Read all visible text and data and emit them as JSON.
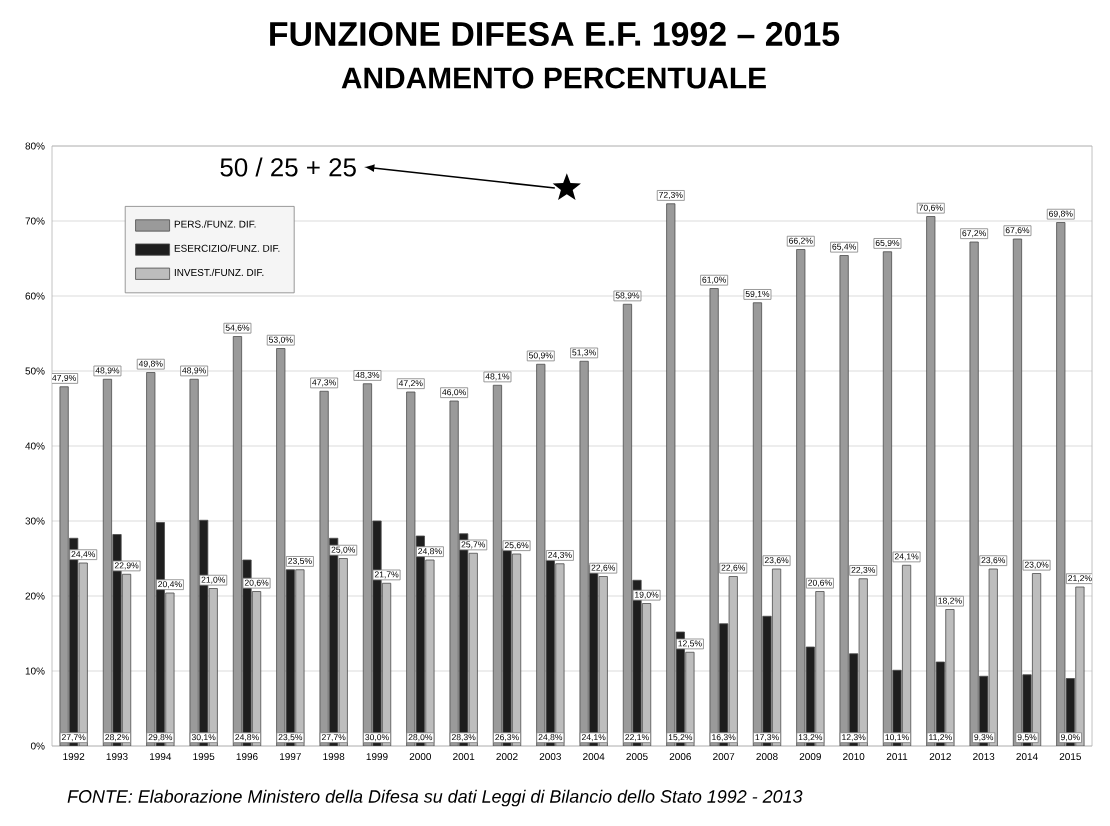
{
  "chart_data": {
    "type": "bar",
    "title": "FUNZIONE DIFESA E.F. 1992 – 2015",
    "subtitle": "ANDAMENTO PERCENTUALE",
    "categories": [
      "1992",
      "1993",
      "1994",
      "1995",
      "1996",
      "1997",
      "1998",
      "1999",
      "2000",
      "2001",
      "2002",
      "2003",
      "2004",
      "2005",
      "2006",
      "2007",
      "2008",
      "2009",
      "2010",
      "2011",
      "2012",
      "2013",
      "2014",
      "2015"
    ],
    "series": [
      {
        "name": "PERS./FUNZ. DIF.",
        "color": "#9a9a9a",
        "values": [
          47.9,
          48.9,
          49.8,
          48.9,
          54.6,
          53.0,
          47.3,
          48.3,
          47.2,
          46.0,
          48.1,
          50.9,
          51.3,
          58.9,
          72.3,
          61.0,
          59.1,
          66.2,
          65.4,
          65.9,
          70.6,
          67.2,
          67.6,
          69.8
        ],
        "value_labels": [
          "47,9%",
          "48,9%",
          "49,8%",
          "48,9%",
          "54,6%",
          "53,0%",
          "47,3%",
          "48,3%",
          "47,2%",
          "46,0%",
          "48,1%",
          "50,9%",
          "51,3%",
          "58,9%",
          "72,3%",
          "61,0%",
          "59,1%",
          "66,2%",
          "65,4%",
          "65,9%",
          "70,6%",
          "67,2%",
          "67,6%",
          "69,8%"
        ]
      },
      {
        "name": "ESERCIZIO/FUNZ. DIF.",
        "color": "#1e1e1e",
        "values": [
          27.7,
          28.2,
          29.8,
          30.1,
          24.8,
          23.5,
          27.7,
          30.0,
          28.0,
          28.3,
          26.3,
          24.8,
          24.1,
          22.1,
          15.2,
          16.3,
          17.3,
          13.2,
          12.3,
          10.1,
          11.2,
          9.3,
          9.5,
          9.0
        ],
        "value_labels": [
          "27,7%",
          "28,2%",
          "29,8%",
          "30,1%",
          "24,8%",
          "23,5%",
          "27,7%",
          "30,0%",
          "28,0%",
          "28,3%",
          "26,3%",
          "24,8%",
          "24,1%",
          "22,1%",
          "15,2%",
          "16,3%",
          "17,3%",
          "13,2%",
          "12,3%",
          "10,1%",
          "11,2%",
          "9,3%",
          "9,5%",
          "9,0%"
        ]
      },
      {
        "name": "INVEST./FUNZ. DIF.",
        "color": "#bdbdbd",
        "values": [
          24.4,
          22.9,
          20.4,
          21.0,
          20.6,
          23.5,
          25.0,
          21.7,
          24.8,
          25.7,
          25.6,
          24.3,
          22.6,
          19.0,
          12.5,
          22.6,
          23.6,
          20.6,
          22.3,
          24.1,
          18.2,
          23.6,
          23.0,
          21.2
        ],
        "value_labels": [
          "24,4%",
          "22,9%",
          "20,4%",
          "21,0%",
          "20,6%",
          "23,5%",
          "25,0%",
          "21,7%",
          "24,8%",
          "25,7%",
          "25,6%",
          "24,3%",
          "22,6%",
          "19,0%",
          "12,5%",
          "22,6%",
          "23,6%",
          "20,6%",
          "22,3%",
          "24,1%",
          "18,2%",
          "23,6%",
          "23,0%",
          "21,2%"
        ]
      }
    ],
    "ylim": [
      0,
      80
    ],
    "yticks": [
      {
        "value": 0,
        "label": "0%"
      },
      {
        "value": 10,
        "label": "10%"
      },
      {
        "value": 20,
        "label": "20%"
      },
      {
        "value": 30,
        "label": "30%"
      },
      {
        "value": 40,
        "label": "40%"
      },
      {
        "value": 50,
        "label": "50%"
      },
      {
        "value": 60,
        "label": "60%"
      },
      {
        "value": 70,
        "label": "70%"
      },
      {
        "value": 80,
        "label": "80%"
      }
    ],
    "grid": "y",
    "legend": "top left",
    "annotations": [
      "50 / 25 + 25",
      "FONTE: Elaborazione Ministero della Difesa su dati Leggi di Bilancio dello Stato 1992 - 2013"
    ]
  }
}
